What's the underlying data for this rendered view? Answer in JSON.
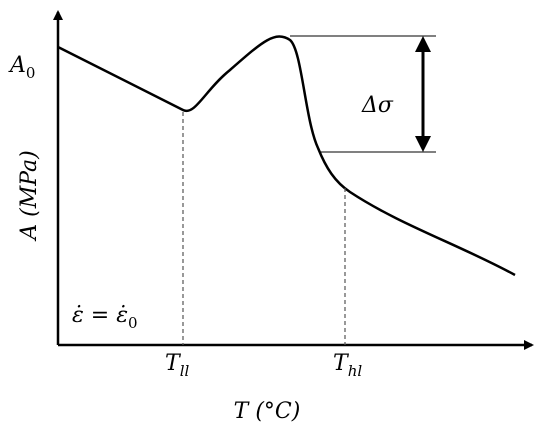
{
  "y_mark": {
    "text": "A",
    "subscript": "0"
  },
  "y_axis_label": "A (MPa)",
  "delta_label": "Δσ",
  "strain_rate": {
    "text": "ε̇ = ε̇",
    "subscript": "0"
  },
  "x_marks": [
    {
      "text": "T",
      "subscript": "ll"
    },
    {
      "text": "T",
      "subscript": "hl"
    }
  ],
  "x_axis_label": "T (°C)"
}
